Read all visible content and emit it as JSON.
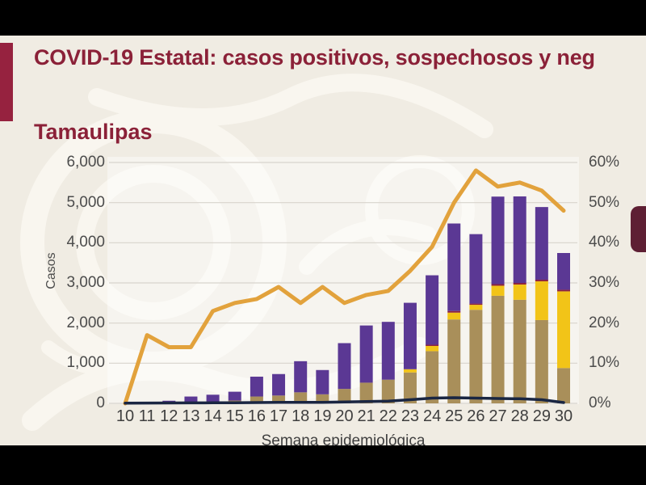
{
  "page": {
    "title": "COVID-19 Estatal: casos positivos, sospechosos y neg",
    "subtitle": "Tamaulipas"
  },
  "colors": {
    "background_beige": "#f0ece3",
    "letterbox_black": "#000000",
    "title_maroon": "#8b2138",
    "left_accent_maroon": "#96223f",
    "right_pill_maroon": "#5e1f34",
    "gridline_gray": "#d8d4cd",
    "axis_text_gray": "#4c4c4c",
    "bar_tan": "#a98f5a",
    "bar_yellow": "#f2c418",
    "bar_maroon_strip": "#8c2340",
    "bar_purple": "#5b3894",
    "line_orange": "#e2a23c",
    "line_navy": "#1a2642"
  },
  "chart_data": {
    "type": "bar",
    "subtype": "combo: stacked bars (left axis) + two lines (orange on right % axis, dark navy on left axis)",
    "title": "COVID-19 Estatal: casos positivos, sospechosos y neg",
    "region": "Tamaulipas",
    "xlabel": "Semana epidemiológica",
    "ylabel": "Casos",
    "grid": true,
    "legend": "none visible",
    "y_left_range": [
      0,
      6000
    ],
    "y_left_ticks": [
      "0",
      "1,000",
      "2,000",
      "3,000",
      "4,000",
      "5,000",
      "6,000"
    ],
    "y_right_range": [
      0,
      60
    ],
    "y_right_ticks": [
      "0%",
      "10%",
      "20%",
      "30%",
      "40%",
      "50%",
      "60%"
    ],
    "categories": [
      "10",
      "11",
      "12",
      "13",
      "14",
      "15",
      "16",
      "17",
      "18",
      "19",
      "20",
      "21",
      "22",
      "23",
      "24",
      "25",
      "26",
      "27",
      "28",
      "29",
      "30"
    ],
    "bar_series_stacked_bottom_to_top": [
      {
        "key": "positivos",
        "name": "positivos (barra ocre)",
        "color": "#a98f5a",
        "values": [
          0,
          0,
          15,
          35,
          45,
          70,
          170,
          195,
          275,
          225,
          360,
          515,
          590,
          770,
          1300,
          2090,
          2330,
          2680,
          2580,
          2075,
          880
        ]
      },
      {
        "key": "sospechosos",
        "name": "sospechosos (barra amarilla)",
        "color": "#f2c418",
        "values": [
          0,
          0,
          0,
          0,
          0,
          0,
          0,
          0,
          0,
          0,
          0,
          0,
          0,
          80,
          130,
          170,
          125,
          250,
          380,
          965,
          1910
        ]
      },
      {
        "key": "granate",
        "name": "franja granate delgada",
        "color": "#8c2340",
        "values": [
          0,
          0,
          0,
          0,
          0,
          0,
          0,
          0,
          0,
          0,
          0,
          0,
          0,
          0,
          30,
          40,
          30,
          40,
          40,
          40,
          40
        ]
      },
      {
        "key": "negativos",
        "name": "negativos (barra morada)",
        "color": "#5b3894",
        "values": [
          0,
          0,
          50,
          135,
          170,
          220,
          495,
          535,
          775,
          605,
          1140,
          1425,
          1440,
          1655,
          1730,
          2180,
          1730,
          2180,
          2155,
          1810,
          915
        ]
      }
    ],
    "line_series": [
      {
        "key": "pct_line",
        "name": "línea naranja (eje derecho, %)",
        "axis": "right",
        "color": "#e2a23c",
        "stroke_width": 5,
        "values": [
          0,
          17,
          14,
          14,
          23,
          25,
          26,
          29,
          25,
          29,
          25,
          27,
          28,
          33,
          39,
          50,
          58,
          54,
          55,
          53,
          48
        ]
      },
      {
        "key": "navy_line",
        "name": "línea azul oscuro (eje izquierdo, casos)",
        "axis": "left",
        "color": "#1a2642",
        "stroke_width": 3.5,
        "values": [
          5,
          8,
          10,
          12,
          15,
          15,
          20,
          25,
          25,
          25,
          35,
          45,
          55,
          90,
          130,
          140,
          130,
          120,
          115,
          90,
          20
        ]
      }
    ]
  }
}
